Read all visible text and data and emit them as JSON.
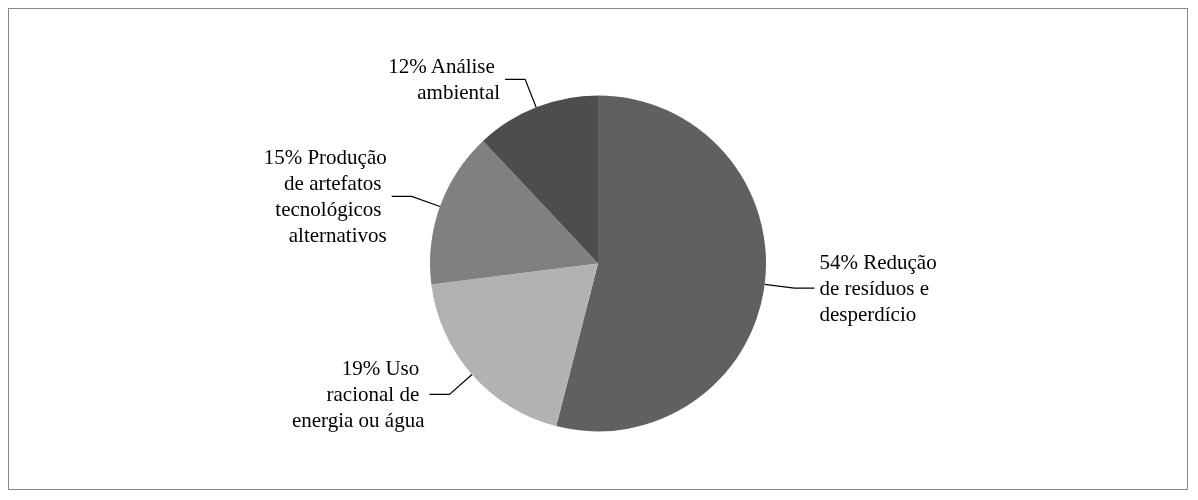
{
  "chart_data": {
    "type": "pie",
    "categories": [
      "Redução de resíduos e desperdício",
      "Uso racional de energia ou água",
      "Produção de artefatos tecnológicos alternativos",
      "Análise ambiental"
    ],
    "values": [
      54,
      19,
      15,
      12
    ],
    "colors": [
      "#606060",
      "#b2b2b2",
      "#808080",
      "#4d4d4d"
    ],
    "value_labels": [
      "54%",
      "19%",
      "15%",
      "12%"
    ],
    "legend": false
  }
}
